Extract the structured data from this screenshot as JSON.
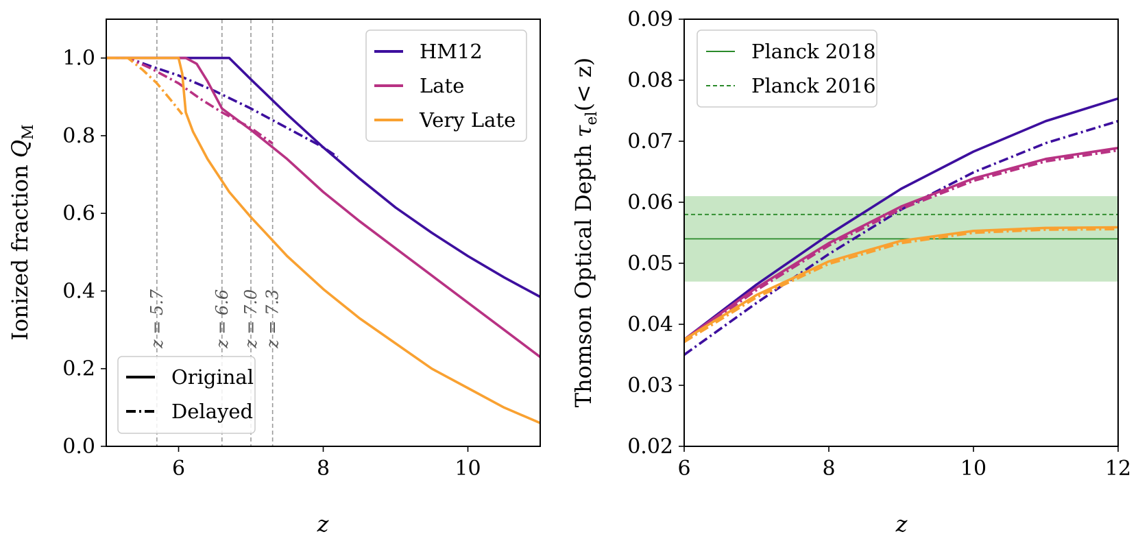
{
  "chart_data": [
    {
      "type": "line",
      "xlabel": "z",
      "ylabel": "Ionized fraction Q_M",
      "ylabel_main": "Ionized fraction ",
      "ylabel_sym": "Q",
      "ylabel_sub": "M",
      "xlim": [
        5,
        11
      ],
      "ylim": [
        0,
        1.1
      ],
      "xticks": [
        6,
        8,
        10
      ],
      "xtick_labels": [
        "6",
        "8",
        "10"
      ],
      "yticks": [
        0,
        0.2,
        0.4,
        0.6,
        0.8,
        1.0
      ],
      "ytick_labels": [
        "0.0",
        "0.2",
        "0.4",
        "0.6",
        "0.8",
        "1.0"
      ],
      "vlines": [
        {
          "z": 5.7,
          "label": "z = 5.7"
        },
        {
          "z": 6.6,
          "label": "z = 6.6"
        },
        {
          "z": 7.0,
          "label": "z = 7.0"
        },
        {
          "z": 7.3,
          "label": "z = 7.3"
        }
      ],
      "legend_color": [
        {
          "label": "HM12",
          "color": "#3d0f9e"
        },
        {
          "label": "Late",
          "color": "#b83283"
        },
        {
          "label": "Very Late",
          "color": "#f9a131"
        }
      ],
      "legend_style": [
        {
          "label": "Original",
          "style": "solid"
        },
        {
          "label": "Delayed",
          "style": "dashdot"
        }
      ],
      "series": [
        {
          "name": "HM12",
          "style": "Original",
          "color": "#3d0f9e",
          "x": [
            5,
            6.7,
            7,
            7.5,
            8,
            8.5,
            9,
            9.5,
            10,
            10.5,
            11
          ],
          "y": [
            1.0,
            1.0,
            0.945,
            0.855,
            0.77,
            0.69,
            0.615,
            0.55,
            0.49,
            0.435,
            0.385
          ]
        },
        {
          "name": "HM12",
          "style": "Delayed",
          "color": "#3d0f9e",
          "x": [
            5,
            5.3,
            5.6,
            6,
            6.5,
            7,
            7.5,
            8,
            8.2
          ],
          "y": [
            1.0,
            1.0,
            0.98,
            0.955,
            0.915,
            0.87,
            0.82,
            0.77,
            0.745
          ]
        },
        {
          "name": "Late",
          "style": "Original",
          "color": "#b83283",
          "x": [
            5,
            6.0,
            6.1,
            6.25,
            6.4,
            6.6,
            7.0,
            7.5,
            8,
            8.5,
            9,
            9.5,
            10,
            10.5,
            11
          ],
          "y": [
            1.0,
            1.0,
            1.0,
            0.985,
            0.94,
            0.87,
            0.815,
            0.74,
            0.655,
            0.58,
            0.51,
            0.44,
            0.37,
            0.3,
            0.23
          ]
        },
        {
          "name": "Late",
          "style": "Delayed",
          "color": "#b83283",
          "x": [
            5,
            5.3,
            5.6,
            6,
            6.3,
            6.6,
            7.0,
            7.3
          ],
          "y": [
            1.0,
            1.0,
            0.975,
            0.935,
            0.895,
            0.86,
            0.82,
            0.78
          ]
        },
        {
          "name": "Very Late",
          "style": "Original",
          "color": "#f9a131",
          "x": [
            5,
            6.0,
            6.05,
            6.1,
            6.2,
            6.4,
            6.7,
            7,
            7.5,
            8,
            8.5,
            9,
            9.5,
            10,
            10.5,
            11
          ],
          "y": [
            1.0,
            1.0,
            0.96,
            0.86,
            0.81,
            0.74,
            0.655,
            0.59,
            0.49,
            0.405,
            0.33,
            0.265,
            0.2,
            0.15,
            0.1,
            0.06
          ]
        },
        {
          "name": "Very Late",
          "style": "Delayed",
          "color": "#f9a131",
          "x": [
            5,
            5.3,
            5.5,
            5.7,
            5.9,
            6.05
          ],
          "y": [
            1.0,
            1.0,
            0.97,
            0.935,
            0.89,
            0.855
          ]
        }
      ]
    },
    {
      "type": "line",
      "xlabel": "z",
      "ylabel": "Thomson Optical Depth τ_el(< z)",
      "ylabel_main": "Thomson Optical Depth ",
      "ylabel_sym": "τ",
      "ylabel_sub": "el",
      "ylabel_tail": "(< z)",
      "xlim": [
        6,
        12
      ],
      "ylim": [
        0.02,
        0.09
      ],
      "xticks": [
        6,
        8,
        10,
        12
      ],
      "xtick_labels": [
        "6",
        "8",
        "10",
        "12"
      ],
      "yticks": [
        0.02,
        0.03,
        0.04,
        0.05,
        0.06,
        0.07,
        0.08,
        0.09
      ],
      "ytick_labels": [
        "0.02",
        "0.03",
        "0.04",
        "0.05",
        "0.06",
        "0.07",
        "0.08",
        "0.09"
      ],
      "band": {
        "ymin": 0.047,
        "ymax": 0.061,
        "color": "#c8e6c5"
      },
      "hlines": [
        {
          "label": "Planck 2018",
          "y": 0.054,
          "style": "solid",
          "color": "#2a8a2a"
        },
        {
          "label": "Planck 2016",
          "y": 0.058,
          "style": "dashed",
          "color": "#2a8a2a"
        }
      ],
      "series": [
        {
          "name": "HM12",
          "style": "Original",
          "color": "#3d0f9e",
          "x": [
            6,
            7,
            8,
            9,
            10,
            11,
            12
          ],
          "y": [
            0.0375,
            0.0465,
            0.0547,
            0.0622,
            0.0683,
            0.0733,
            0.077
          ]
        },
        {
          "name": "HM12",
          "style": "Delayed",
          "color": "#3d0f9e",
          "x": [
            6,
            7,
            8,
            9,
            10,
            11,
            12
          ],
          "y": [
            0.035,
            0.0435,
            0.0515,
            0.0588,
            0.0649,
            0.0697,
            0.0733
          ]
        },
        {
          "name": "Late",
          "style": "Original",
          "color": "#b83283",
          "x": [
            6,
            7,
            8,
            9,
            10,
            11,
            12
          ],
          "y": [
            0.0375,
            0.046,
            0.0533,
            0.0593,
            0.0639,
            0.0671,
            0.0689
          ]
        },
        {
          "name": "Late",
          "style": "Delayed",
          "color": "#b83283",
          "x": [
            6,
            7,
            8,
            9,
            10,
            11,
            12
          ],
          "y": [
            0.0372,
            0.0456,
            0.0529,
            0.0589,
            0.0635,
            0.0667,
            0.0685
          ]
        },
        {
          "name": "Very Late",
          "style": "Original",
          "color": "#f9a131",
          "x": [
            6,
            7,
            8,
            9,
            10,
            11,
            12
          ],
          "y": [
            0.0375,
            0.0448,
            0.0503,
            0.0537,
            0.0553,
            0.0558,
            0.0559
          ]
        },
        {
          "name": "Very Late",
          "style": "Delayed",
          "color": "#f9a131",
          "x": [
            6,
            7,
            8,
            9,
            10,
            11,
            12
          ],
          "y": [
            0.0371,
            0.0444,
            0.0499,
            0.0533,
            0.055,
            0.0555,
            0.0556
          ]
        }
      ]
    }
  ]
}
